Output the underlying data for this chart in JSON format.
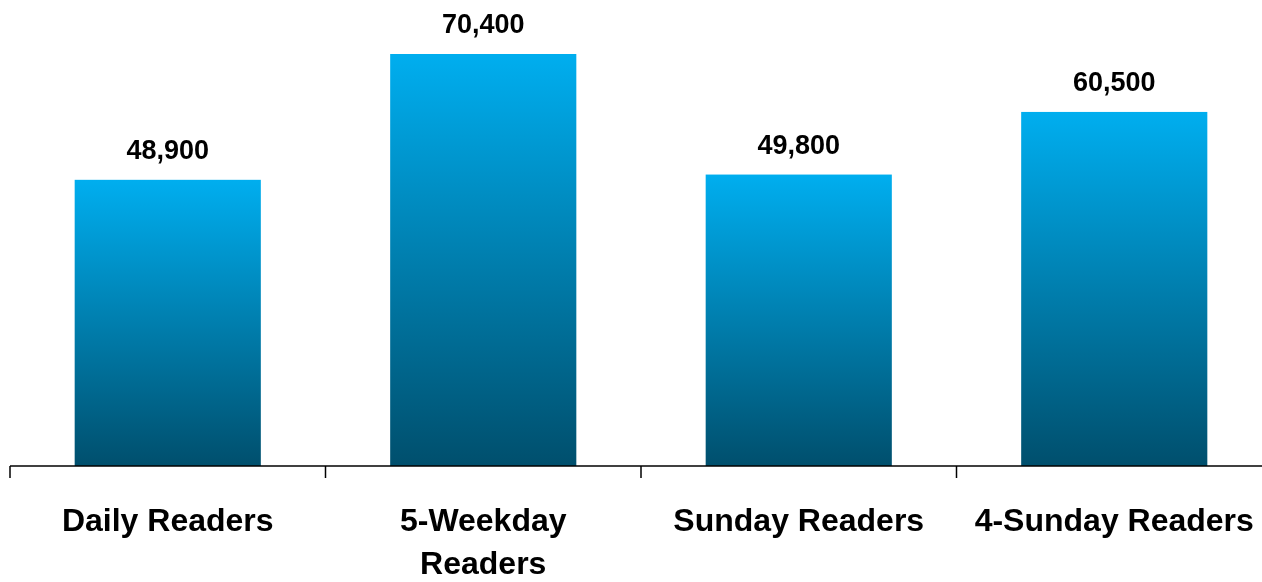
{
  "chart_data": {
    "type": "bar",
    "categories": [
      "Daily Readers",
      "5-Weekday Readers",
      "Sunday Readers",
      "4-Sunday Readers"
    ],
    "values": [
      48900,
      70400,
      49800,
      60500
    ],
    "value_labels": [
      "48,900",
      "70,400",
      "49,800",
      "60,500"
    ],
    "color": "#00aeef",
    "tick_labels": "x"
  }
}
